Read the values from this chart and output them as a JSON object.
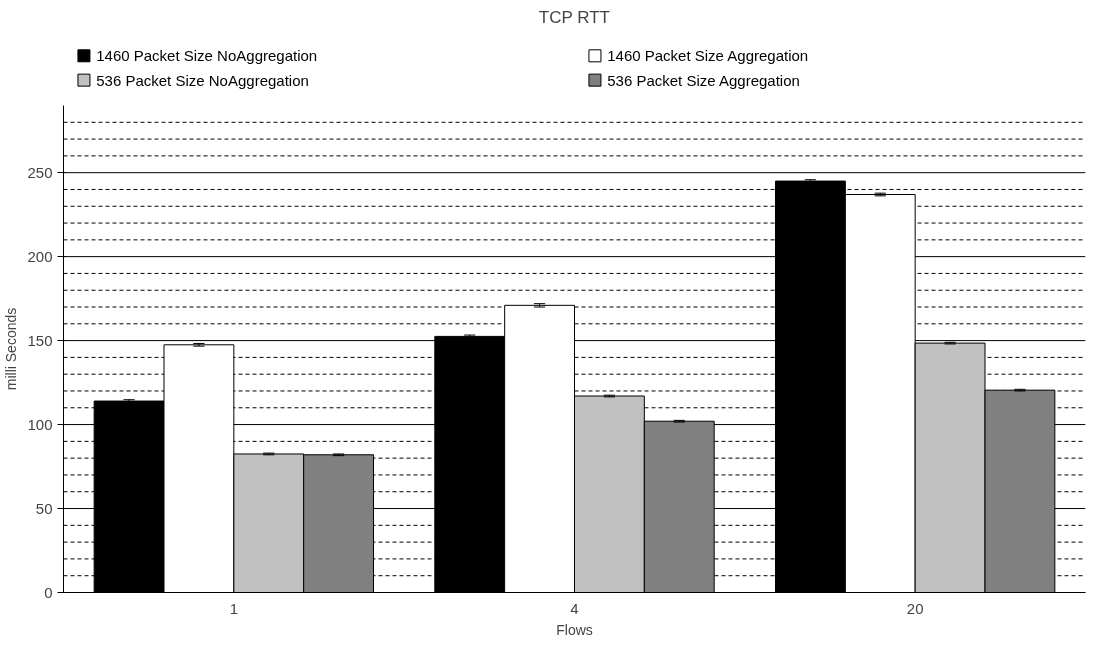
{
  "chart_data": {
    "type": "bar",
    "title": "TCP RTT",
    "xlabel": "Flows",
    "ylabel": "milli Seconds",
    "categories": [
      "1",
      "4",
      "20"
    ],
    "series": [
      {
        "name": "1460 Packet Size NoAggregation",
        "color": "#000000",
        "values": [
          114,
          152.5,
          245
        ],
        "errors": [
          0.8,
          0.8,
          0.8
        ]
      },
      {
        "name": "1460 Packet Size Aggregation",
        "color": "#ffffff",
        "values": [
          147.5,
          171,
          237
        ],
        "errors": [
          0.8,
          1,
          0.8
        ]
      },
      {
        "name": "536 Packet Size NoAggregation",
        "color": "#c0c0c0",
        "values": [
          82.5,
          117,
          148.5
        ],
        "errors": [
          0.5,
          0.5,
          0.5
        ]
      },
      {
        "name": "536 Packet Size Aggregation",
        "color": "#808080",
        "values": [
          82,
          102,
          120.5
        ],
        "errors": [
          0.5,
          0.5,
          0.5
        ]
      }
    ],
    "ylim": [
      0,
      290
    ],
    "yticks": [
      0,
      {
        "value": 10,
        "label": null
      },
      {
        "value": 20,
        "label": null
      },
      {
        "value": 30,
        "label": null
      },
      {
        "value": 40,
        "label": null
      },
      50,
      {
        "value": 60,
        "label": null
      },
      {
        "value": 70,
        "label": null
      },
      {
        "value": 80,
        "label": null
      },
      {
        "value": 90,
        "label": null
      },
      100,
      {
        "value": 110,
        "label": null
      },
      {
        "value": 120,
        "label": null
      },
      {
        "value": 130,
        "label": null
      },
      {
        "value": 140,
        "label": null
      },
      150,
      {
        "value": 160,
        "label": null
      },
      {
        "value": 170,
        "label": null
      },
      {
        "value": 180,
        "label": null
      },
      {
        "value": 190,
        "label": null
      },
      200,
      {
        "value": 210,
        "label": null
      },
      {
        "value": 220,
        "label": null
      },
      {
        "value": 230,
        "label": null
      },
      {
        "value": 240,
        "label": null
      },
      250,
      {
        "value": 260,
        "label": null
      },
      {
        "value": 270,
        "label": null
      },
      {
        "value": 280,
        "label": null
      }
    ],
    "grid": "y",
    "legend": "top"
  }
}
